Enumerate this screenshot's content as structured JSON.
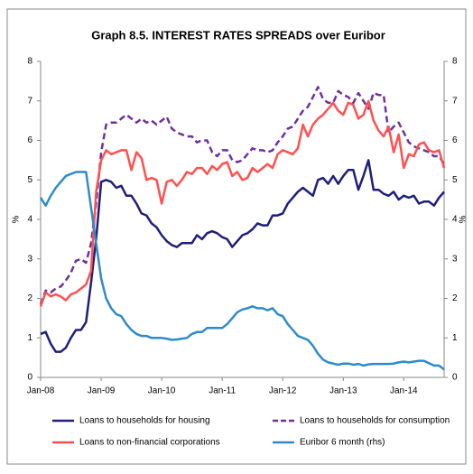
{
  "chart_data": {
    "type": "line",
    "title": "Graph 8.5. INTEREST RATES SPREADS over Euribor",
    "ylabel": "%",
    "y2label": "%",
    "categories": [
      "Jan-08",
      null,
      null,
      null,
      null,
      null,
      null,
      null,
      null,
      null,
      null,
      null,
      "Jan-09",
      null,
      null,
      null,
      null,
      null,
      null,
      null,
      null,
      null,
      null,
      null,
      "Jan-10",
      null,
      null,
      null,
      null,
      null,
      null,
      null,
      null,
      null,
      null,
      null,
      "Jan-11",
      null,
      null,
      null,
      null,
      null,
      null,
      null,
      null,
      null,
      null,
      null,
      "Jan-12",
      null,
      null,
      null,
      null,
      null,
      null,
      null,
      null,
      null,
      null,
      null,
      "Jan-13",
      null,
      null,
      null,
      null,
      null,
      null,
      null,
      null,
      null,
      null,
      null,
      "Jan-14",
      null,
      null,
      null,
      null,
      null,
      null,
      null,
      null
    ],
    "ylim": [
      0,
      8
    ],
    "yticks": [
      0,
      1,
      2,
      3,
      4,
      5,
      6,
      7,
      8
    ],
    "y2lim": [
      0,
      8
    ],
    "y2ticks": [
      0,
      1,
      2,
      3,
      4,
      5,
      6,
      7,
      8
    ],
    "grid": false,
    "series": [
      {
        "name": "Loans to households for housing",
        "color": "#1f1f7a",
        "dashed": false,
        "values": [
          1.1,
          1.15,
          0.85,
          0.65,
          0.65,
          0.75,
          1.0,
          1.2,
          1.2,
          1.4,
          2.4,
          3.5,
          4.95,
          5.0,
          4.95,
          4.8,
          4.85,
          4.6,
          4.6,
          4.4,
          4.15,
          4.1,
          3.9,
          3.8,
          3.6,
          3.45,
          3.35,
          3.3,
          3.4,
          3.4,
          3.4,
          3.6,
          3.5,
          3.65,
          3.7,
          3.65,
          3.55,
          3.5,
          3.3,
          3.45,
          3.6,
          3.65,
          3.75,
          3.9,
          3.85,
          3.85,
          4.1,
          4.1,
          4.15,
          4.4,
          4.55,
          4.7,
          4.8,
          4.7,
          4.6,
          5.0,
          5.05,
          4.9,
          5.1,
          4.9,
          5.1,
          5.25,
          5.25,
          4.75,
          5.1,
          5.5,
          4.75,
          4.75,
          4.65,
          4.6,
          4.7,
          4.5,
          4.6,
          4.55,
          4.6,
          4.4,
          4.45,
          4.45,
          4.35,
          4.55,
          4.7
        ]
      },
      {
        "name": "Loans to households for consumption",
        "color": "#7030a0",
        "dashed": true,
        "values": [
          1.85,
          2.2,
          2.15,
          2.25,
          2.3,
          2.45,
          2.65,
          2.95,
          3.0,
          2.9,
          3.4,
          4.4,
          5.7,
          6.4,
          6.45,
          6.45,
          6.55,
          6.65,
          6.55,
          6.45,
          6.55,
          6.45,
          6.5,
          6.4,
          6.5,
          6.6,
          6.3,
          6.2,
          6.15,
          6.1,
          6.1,
          5.95,
          6.0,
          6.0,
          5.7,
          5.6,
          5.75,
          5.75,
          5.5,
          5.45,
          5.5,
          5.65,
          5.8,
          5.75,
          5.75,
          5.7,
          5.75,
          5.95,
          6.1,
          6.3,
          6.35,
          6.55,
          6.75,
          6.85,
          7.1,
          7.35,
          7.05,
          6.95,
          6.95,
          7.25,
          7.15,
          7.1,
          6.95,
          7.2,
          7.0,
          6.8,
          7.2,
          7.15,
          7.15,
          6.2,
          6.35,
          6.45,
          6.2,
          5.95,
          5.85,
          5.8,
          5.75,
          5.7,
          5.6,
          5.6,
          5.4
        ]
      },
      {
        "name": "Loans to non-financial corporations",
        "color": "#ff5050",
        "dashed": false,
        "values": [
          1.8,
          2.15,
          2.05,
          2.1,
          2.05,
          1.95,
          2.1,
          2.15,
          2.25,
          2.35,
          2.7,
          4.7,
          5.5,
          5.75,
          5.65,
          5.7,
          5.75,
          5.75,
          5.25,
          5.7,
          5.55,
          5.0,
          5.05,
          5.0,
          4.4,
          4.95,
          5.0,
          4.85,
          5.0,
          5.2,
          5.15,
          5.3,
          5.3,
          5.15,
          5.35,
          5.25,
          5.4,
          5.45,
          5.1,
          5.2,
          5.0,
          5.05,
          5.3,
          5.2,
          5.3,
          5.4,
          5.3,
          5.65,
          5.75,
          5.7,
          5.65,
          5.8,
          6.4,
          6.1,
          6.4,
          6.55,
          6.65,
          6.8,
          6.95,
          6.75,
          6.65,
          6.95,
          6.9,
          6.55,
          6.65,
          7.0,
          6.5,
          6.25,
          6.1,
          6.35,
          5.7,
          6.15,
          5.3,
          5.65,
          5.6,
          5.9,
          5.95,
          5.75,
          5.7,
          5.75,
          5.3
        ]
      },
      {
        "name": "Euribor 6 month (rhs)",
        "color": "#2e8bc9",
        "dashed": false,
        "axis": "y2",
        "values": [
          4.55,
          4.35,
          4.6,
          4.8,
          4.95,
          5.1,
          5.15,
          5.2,
          5.2,
          5.2,
          4.3,
          3.4,
          2.5,
          2.0,
          1.75,
          1.6,
          1.55,
          1.35,
          1.2,
          1.1,
          1.05,
          1.05,
          1.0,
          1.0,
          1.0,
          0.98,
          0.95,
          0.96,
          0.98,
          1.0,
          1.1,
          1.15,
          1.15,
          1.25,
          1.25,
          1.25,
          1.25,
          1.35,
          1.5,
          1.65,
          1.72,
          1.75,
          1.8,
          1.75,
          1.75,
          1.7,
          1.75,
          1.6,
          1.55,
          1.35,
          1.2,
          1.05,
          1.0,
          0.95,
          0.8,
          0.6,
          0.45,
          0.38,
          0.35,
          0.32,
          0.35,
          0.35,
          0.32,
          0.34,
          0.3,
          0.33,
          0.34,
          0.34,
          0.34,
          0.34,
          0.35,
          0.38,
          0.4,
          0.38,
          0.4,
          0.42,
          0.42,
          0.36,
          0.3,
          0.3,
          0.2
        ]
      }
    ]
  }
}
